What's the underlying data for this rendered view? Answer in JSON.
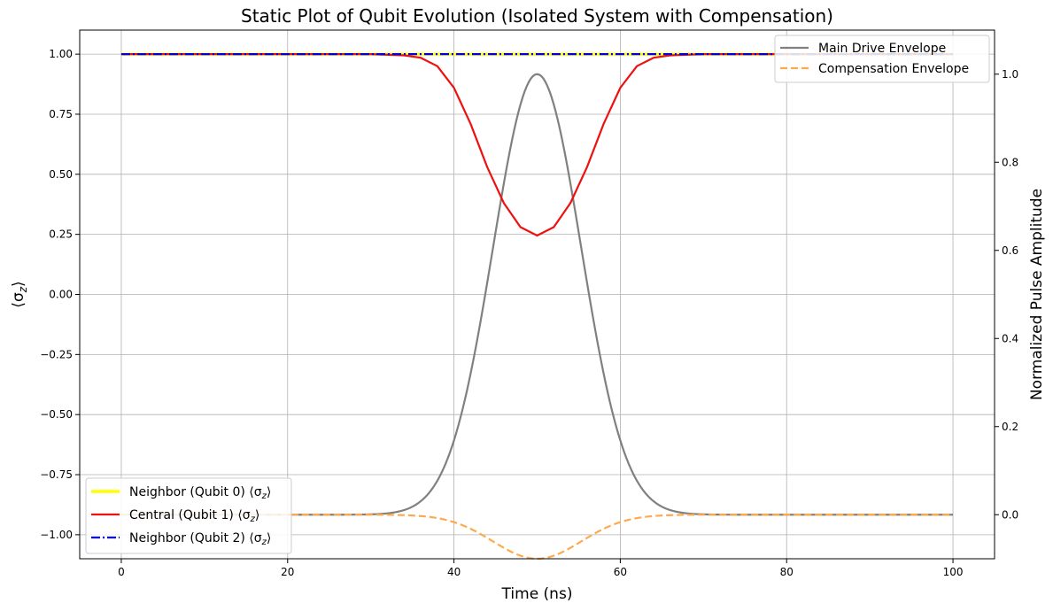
{
  "chart_data": {
    "type": "line",
    "title": "Static Plot of Qubit Evolution (Isolated System with Compensation)",
    "xlabel": "Time (ns)",
    "ylabel_left": "⟨σ_z⟩",
    "ylabel_right": "Normalized Pulse Amplitude",
    "xlim": [
      -5,
      105
    ],
    "ylim_left": [
      -1.1,
      1.1
    ],
    "ylim_right": [
      -0.1,
      1.1
    ],
    "x_ticks": [
      0,
      20,
      40,
      60,
      80,
      100
    ],
    "y_ticks_left": [
      1.0,
      0.75,
      0.5,
      0.25,
      0.0,
      -0.25,
      -0.5,
      -0.75,
      -1.0
    ],
    "y_tick_labels_left": [
      "1.00",
      "0.75",
      "0.50",
      "0.25",
      "0.00",
      "−0.25",
      "−0.50",
      "−0.75",
      "−1.00"
    ],
    "y_ticks_right": [
      0.0,
      0.2,
      0.4,
      0.6,
      0.8,
      1.0
    ],
    "y_tick_labels_right": [
      "0.0",
      "0.2",
      "0.4",
      "0.6",
      "0.8",
      "1.0"
    ],
    "grid": true,
    "series_left": [
      {
        "name": "Neighbor (Qubit 0) ⟨σz⟩",
        "color": "#ffff00",
        "style": "solid",
        "x": [
          0,
          20,
          40,
          50,
          60,
          80,
          100
        ],
        "values": [
          1.0,
          1.0,
          1.0,
          1.0,
          1.0,
          1.0,
          1.0
        ]
      },
      {
        "name": "Central (Qubit 1) ⟨σz⟩",
        "color": "#ee1111",
        "style": "solid",
        "x": [
          0,
          30,
          34,
          36,
          38,
          40,
          42,
          44,
          46,
          48,
          50,
          52,
          54,
          56,
          58,
          60,
          62,
          64,
          66,
          70,
          100
        ],
        "values": [
          1.0,
          1.0,
          0.995,
          0.985,
          0.95,
          0.86,
          0.71,
          0.53,
          0.38,
          0.28,
          0.245,
          0.28,
          0.38,
          0.53,
          0.71,
          0.86,
          0.95,
          0.985,
          0.995,
          1.0,
          1.0
        ]
      },
      {
        "name": "Neighbor (Qubit 2) ⟨σz⟩",
        "color": "#0000dd",
        "style": "dashdot",
        "x": [
          0,
          20,
          40,
          50,
          60,
          80,
          100
        ],
        "values": [
          1.0,
          1.0,
          1.0,
          1.0,
          1.0,
          1.0,
          1.0
        ]
      }
    ],
    "series_right": [
      {
        "name": "Main Drive Envelope",
        "color": "#808080",
        "style": "solid",
        "shape": "gaussian",
        "center": 50,
        "sigma": 5.3,
        "amplitude": 1.0,
        "x_range": [
          0,
          100
        ]
      },
      {
        "name": "Compensation Envelope",
        "color": "#ffa94d",
        "style": "dashed",
        "shape": "gaussian",
        "center": 50,
        "sigma": 5.3,
        "amplitude": -0.1,
        "x_range": [
          0,
          100
        ]
      }
    ],
    "legend_left_placement": "lower-left",
    "legend_right_placement": "upper-right"
  }
}
